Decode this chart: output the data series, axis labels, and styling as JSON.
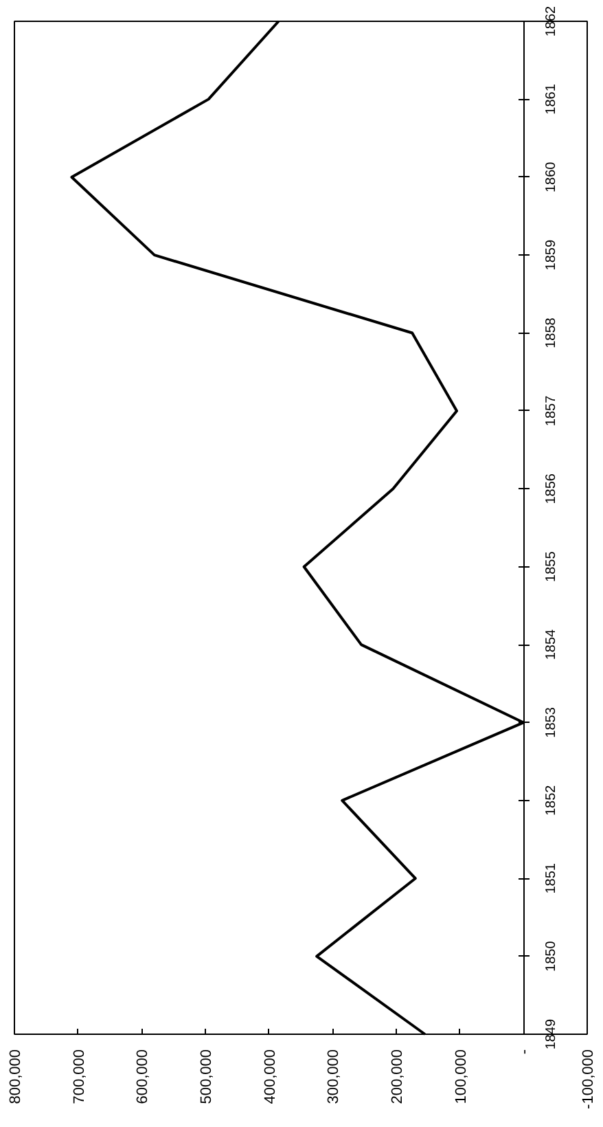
{
  "chart_data": {
    "type": "line",
    "orientation": "horizontal",
    "x": [
      1849,
      1850,
      1851,
      1852,
      1853,
      1854,
      1855,
      1856,
      1857,
      1858,
      1859,
      1860,
      1861,
      1862
    ],
    "series": [
      {
        "color": "#000000",
        "values": [
          155000,
          325000,
          170000,
          285000,
          0,
          255000,
          345000,
          205000,
          105000,
          175000,
          580000,
          710000,
          495000,
          385000
        ]
      }
    ],
    "xlim": [
      800000,
      -100000
    ],
    "xticks": [
      {
        "value": 800000,
        "label": "800,000"
      },
      {
        "value": 700000,
        "label": "700,000"
      },
      {
        "value": 600000,
        "label": "600,000"
      },
      {
        "value": 500000,
        "label": "500,000"
      },
      {
        "value": 400000,
        "label": "400,000"
      },
      {
        "value": 300000,
        "label": "300,000"
      },
      {
        "value": 200000,
        "label": "200,000"
      },
      {
        "value": 100000,
        "label": "100,000"
      },
      {
        "value": 0,
        "label": "-"
      },
      {
        "value": -100000,
        "label": "-100,000"
      }
    ],
    "ylim": [
      1849,
      1862
    ],
    "yticks": [
      1849,
      1850,
      1851,
      1852,
      1853,
      1854,
      1855,
      1856,
      1857,
      1858,
      1859,
      1860,
      1861,
      1862
    ],
    "grid": false
  }
}
